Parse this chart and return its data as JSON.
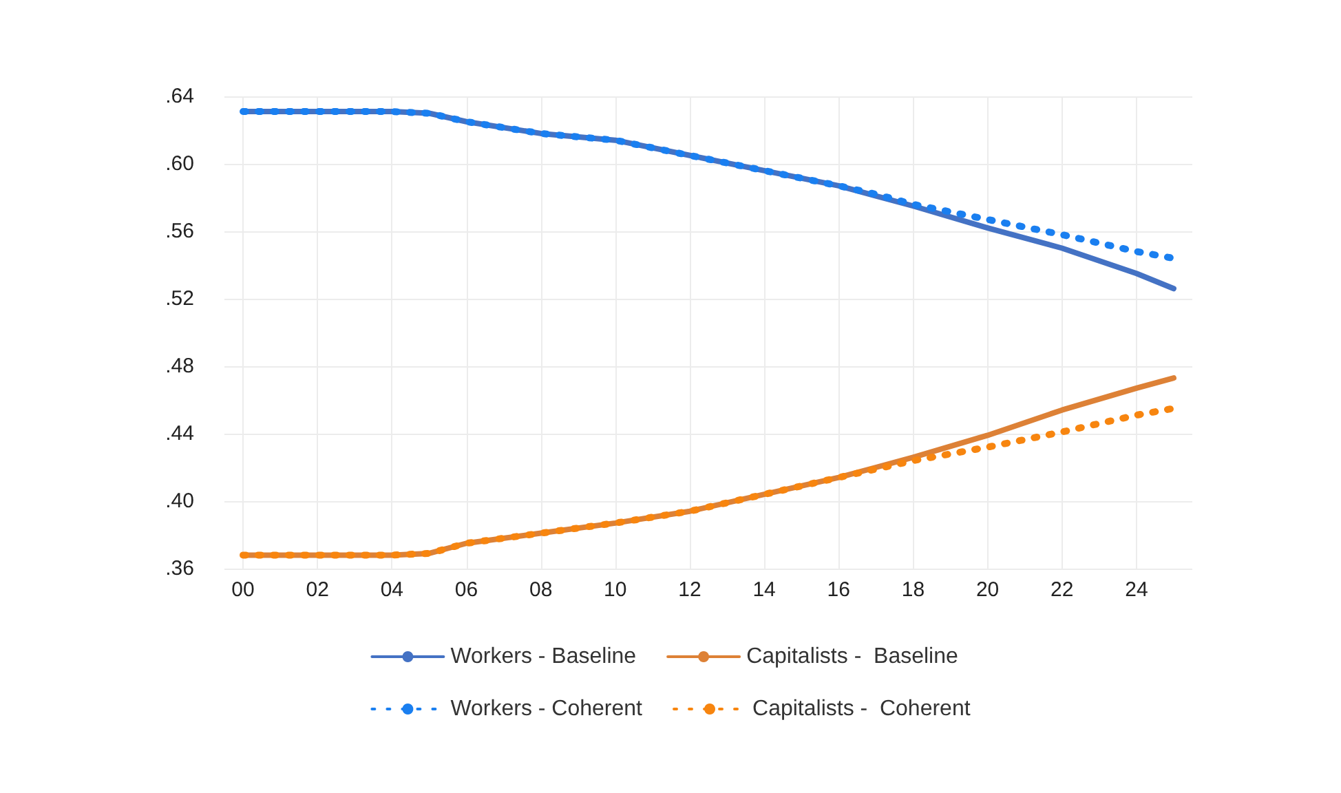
{
  "chart_data": {
    "type": "line",
    "x": [
      0,
      2,
      4,
      5,
      6,
      8,
      10,
      12,
      14,
      16,
      17,
      18,
      20,
      22,
      24,
      25
    ],
    "series": [
      {
        "name": "Workers - Baseline",
        "color": "#4472c4",
        "line_style": "solid",
        "values": [
          0.631,
          0.631,
          0.631,
          0.63,
          0.625,
          0.618,
          0.614,
          0.605,
          0.596,
          0.587,
          0.581,
          0.575,
          0.562,
          0.55,
          0.535,
          0.526
        ]
      },
      {
        "name": "Capitalists -  Baseline",
        "color": "#dd8136",
        "line_style": "solid",
        "values": [
          0.368,
          0.368,
          0.368,
          0.369,
          0.375,
          0.381,
          0.387,
          0.394,
          0.404,
          0.414,
          0.42,
          0.426,
          0.439,
          0.454,
          0.467,
          0.473
        ]
      },
      {
        "name": "Workers - Coherent",
        "color": "#1a7ff0",
        "line_style": "dotted",
        "values": [
          0.631,
          0.631,
          0.631,
          0.63,
          0.625,
          0.618,
          0.614,
          0.605,
          0.596,
          0.587,
          0.582,
          0.576,
          0.567,
          0.558,
          0.548,
          0.544
        ]
      },
      {
        "name": "Capitalists -  Coherent",
        "color": "#f7850f",
        "line_style": "dotted",
        "values": [
          0.368,
          0.368,
          0.368,
          0.369,
          0.375,
          0.381,
          0.387,
          0.394,
          0.404,
          0.414,
          0.419,
          0.424,
          0.432,
          0.441,
          0.451,
          0.455
        ]
      }
    ],
    "xlim": [
      -0.5,
      25.5
    ],
    "xticks": [
      {
        "value": 0,
        "label": "00"
      },
      {
        "value": 2,
        "label": "02"
      },
      {
        "value": 4,
        "label": "04"
      },
      {
        "value": 6,
        "label": "06"
      },
      {
        "value": 8,
        "label": "08"
      },
      {
        "value": 10,
        "label": "10"
      },
      {
        "value": 12,
        "label": "12"
      },
      {
        "value": 14,
        "label": "14"
      },
      {
        "value": 16,
        "label": "16"
      },
      {
        "value": 18,
        "label": "18"
      },
      {
        "value": 20,
        "label": "20"
      },
      {
        "value": 22,
        "label": "22"
      },
      {
        "value": 24,
        "label": "24"
      }
    ],
    "ylim": [
      0.36,
      0.64
    ],
    "yticks": [
      {
        "value": 0.36,
        "label": ".36"
      },
      {
        "value": 0.4,
        "label": ".40"
      },
      {
        "value": 0.44,
        "label": ".44"
      },
      {
        "value": 0.48,
        "label": ".48"
      },
      {
        "value": 0.52,
        "label": ".52"
      },
      {
        "value": 0.56,
        "label": ".56"
      },
      {
        "value": 0.6,
        "label": ".60"
      },
      {
        "value": 0.64,
        "label": ".64"
      }
    ],
    "grid": true,
    "legend": "bottom",
    "marker": "none"
  }
}
